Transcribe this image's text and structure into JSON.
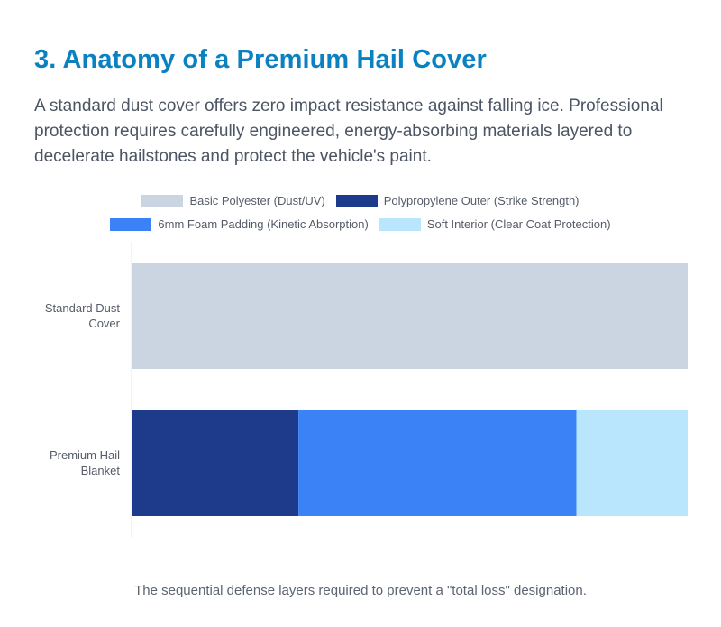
{
  "header": {
    "title": "3. Anatomy of a Premium Hail Cover",
    "description": "A standard dust cover offers zero impact resistance against falling ice. Professional protection requires carefully engineered, energy-absorbing materials layered to decelerate hailstones and protect the vehicle's paint."
  },
  "caption": "The sequential defense layers required to prevent a \"total loss\" designation.",
  "chart_data": {
    "type": "bar",
    "orientation": "horizontal",
    "stacked": true,
    "categories": [
      [
        "Standard Dust",
        "Cover"
      ],
      [
        "Premium Hail",
        "Blanket"
      ]
    ],
    "series": [
      {
        "name": "Basic Polyester (Dust/UV)",
        "color": "#cbd5e1",
        "values": [
          100,
          0
        ]
      },
      {
        "name": "Polypropylene Outer (Strike Strength)",
        "color": "#1e3a8a",
        "values": [
          0,
          30
        ]
      },
      {
        "name": "6mm Foam Padding (Kinetic Absorption)",
        "color": "#3b82f6",
        "values": [
          0,
          50
        ]
      },
      {
        "name": "Soft Interior (Clear Coat Protection)",
        "color": "#bae6fd",
        "values": [
          0,
          20
        ]
      }
    ],
    "xlim": [
      0,
      100
    ],
    "legend": "top",
    "grid": false
  }
}
